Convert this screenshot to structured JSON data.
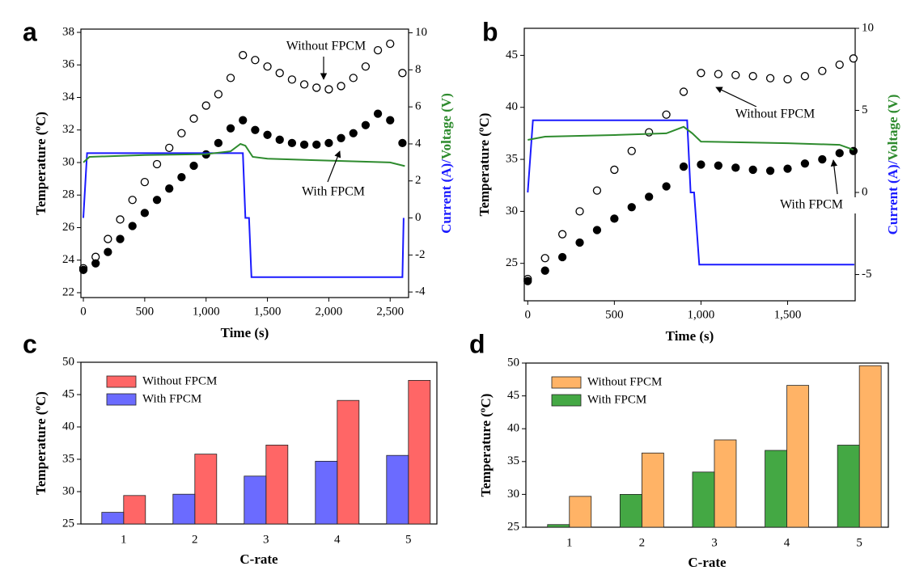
{
  "chart_data": [
    {
      "type": "line",
      "panel_label": "a",
      "xlabel": "Time (s)",
      "ylabel": "Temperature (ºC)",
      "xlim": [
        -20,
        2650
      ],
      "xticks": [
        0,
        500,
        {
          "value": 1000,
          "label": "1,000"
        },
        {
          "value": 1500,
          "label": "1,500"
        },
        {
          "value": 2000,
          "label": "2,000"
        },
        {
          "value": 2500,
          "label": "2,500"
        }
      ],
      "ylim": [
        21.7,
        38.2
      ],
      "yticks": [
        22,
        24,
        26,
        28,
        30,
        32,
        34,
        36,
        38
      ],
      "y2lim": [
        -4.3,
        10.2
      ],
      "y2ticks": [
        -4,
        -2,
        0,
        2,
        4,
        6,
        8,
        10
      ],
      "series": [
        {
          "name": "Without FPCM",
          "color": "#000000",
          "marker": "open",
          "x": [
            0,
            100,
            200,
            300,
            400,
            500,
            600,
            700,
            800,
            900,
            1000,
            1100,
            1200,
            1300,
            1400,
            1500,
            1600,
            1700,
            1800,
            1900,
            2000,
            2100,
            2200,
            2300,
            2400,
            2500,
            2600
          ],
          "values": [
            23.5,
            24.2,
            25.3,
            26.5,
            27.7,
            28.8,
            29.9,
            30.9,
            31.8,
            32.7,
            33.5,
            34.2,
            35.2,
            36.6,
            36.3,
            35.9,
            35.5,
            35.1,
            34.8,
            34.6,
            34.5,
            34.7,
            35.2,
            35.9,
            36.9,
            37.3,
            35.5
          ]
        },
        {
          "name": "With FPCM",
          "color": "#000000",
          "marker": "filled",
          "x": [
            0,
            100,
            200,
            300,
            400,
            500,
            600,
            700,
            800,
            900,
            1000,
            1100,
            1200,
            1300,
            1400,
            1500,
            1600,
            1700,
            1800,
            1900,
            2000,
            2100,
            2200,
            2300,
            2400,
            2500,
            2600
          ],
          "values": [
            23.4,
            23.8,
            24.5,
            25.3,
            26.1,
            26.9,
            27.7,
            28.4,
            29.1,
            29.8,
            30.5,
            31.2,
            32.1,
            32.6,
            32.0,
            31.7,
            31.4,
            31.2,
            31.1,
            31.1,
            31.2,
            31.5,
            31.8,
            32.3,
            33.0,
            32.6,
            31.2
          ]
        },
        {
          "name": "Current (A)/",
          "color": "#1a1aff",
          "axis": "y2",
          "x": [
            0,
            30,
            1300,
            1320,
            1350,
            1370,
            2600,
            2610
          ],
          "values": [
            0,
            3.5,
            3.5,
            0,
            0,
            -3.2,
            -3.2,
            0
          ]
        },
        {
          "name": "Voltage (V)",
          "color": "#2e8b2e",
          "axis": "y2",
          "x": [
            0,
            50,
            500,
            1000,
            1200,
            1280,
            1320,
            1380,
            1500,
            2000,
            2500,
            2620
          ],
          "values": [
            3.0,
            3.3,
            3.4,
            3.45,
            3.6,
            4.0,
            3.9,
            3.3,
            3.2,
            3.1,
            3.0,
            2.8
          ]
        }
      ],
      "annotations": [
        "Without FPCM",
        "With FPCM"
      ]
    },
    {
      "type": "line",
      "panel_label": "b",
      "xlabel": "Time (s)",
      "ylabel": "Temperature (ºC)",
      "xlim": [
        -20,
        1890
      ],
      "xticks": [
        0,
        500,
        {
          "value": 1000,
          "label": "1,000"
        },
        {
          "value": 1500,
          "label": "1,500"
        }
      ],
      "ylim": [
        21.4,
        47.6
      ],
      "yticks": [
        25,
        30,
        35,
        40,
        45
      ],
      "y2lim": [
        -6.6,
        10
      ],
      "y2ticks": [
        -5,
        0,
        5,
        10
      ],
      "series": [
        {
          "name": "Without FPCM",
          "color": "#000000",
          "marker": "open",
          "x": [
            0,
            100,
            200,
            300,
            400,
            500,
            600,
            700,
            800,
            900,
            1000,
            1100,
            1200,
            1300,
            1400,
            1500,
            1600,
            1700,
            1800,
            1880
          ],
          "values": [
            23.5,
            25.5,
            27.8,
            30.0,
            32.0,
            34.0,
            35.8,
            37.6,
            39.3,
            41.5,
            43.3,
            43.2,
            43.1,
            43.0,
            42.8,
            42.7,
            43.0,
            43.5,
            44.1,
            44.7
          ]
        },
        {
          "name": "With FPCM",
          "color": "#000000",
          "marker": "filled",
          "x": [
            0,
            100,
            200,
            300,
            400,
            500,
            600,
            700,
            800,
            900,
            1000,
            1100,
            1200,
            1300,
            1400,
            1500,
            1600,
            1700,
            1800,
            1880
          ],
          "values": [
            23.3,
            24.3,
            25.6,
            27.0,
            28.2,
            29.3,
            30.4,
            31.4,
            32.4,
            34.3,
            34.5,
            34.4,
            34.2,
            34.0,
            33.9,
            34.1,
            34.6,
            35.0,
            35.6,
            35.8
          ]
        },
        {
          "name": "Current (A)/",
          "color": "#1a1aff",
          "axis": "y2",
          "x": [
            0,
            30,
            920,
            940,
            960,
            990,
            1885
          ],
          "values": [
            0,
            4.4,
            4.4,
            0,
            0,
            -4.4,
            -4.4
          ]
        },
        {
          "name": "Voltage (V)",
          "color": "#2e8b2e",
          "axis": "y2",
          "x": [
            0,
            50,
            100,
            500,
            800,
            900,
            950,
            1000,
            1500,
            1800,
            1880
          ],
          "values": [
            3.2,
            3.3,
            3.4,
            3.5,
            3.6,
            4.0,
            3.6,
            3.1,
            3.0,
            2.9,
            2.6
          ]
        }
      ],
      "annotations": [
        "Without FPCM",
        "With FPCM"
      ]
    },
    {
      "type": "bar",
      "panel_label": "c",
      "xlabel": "C-rate",
      "ylabel": "Temperature (ºC)",
      "categories": [
        "1",
        "2",
        "3",
        "4",
        "5"
      ],
      "ylim": [
        25,
        50
      ],
      "yticks": [
        25,
        30,
        35,
        40,
        45,
        50
      ],
      "legend": "upper left",
      "series": [
        {
          "name": "Without FPCM",
          "color": "#ff6666",
          "values": [
            29.4,
            35.8,
            37.2,
            44.1,
            47.2
          ]
        },
        {
          "name": "With FPCM",
          "color": "#6b6bff",
          "values": [
            26.8,
            29.6,
            32.4,
            34.7,
            35.6
          ]
        }
      ]
    },
    {
      "type": "bar",
      "panel_label": "d",
      "xlabel": "C-rate",
      "ylabel": "Temperature (ºC)",
      "categories": [
        "1",
        "2",
        "3",
        "4",
        "5"
      ],
      "ylim": [
        25,
        50
      ],
      "yticks": [
        25,
        30,
        35,
        40,
        45,
        50
      ],
      "legend": "upper left",
      "series": [
        {
          "name": "Without FPCM",
          "color": "#ffb366",
          "values": [
            29.7,
            36.3,
            38.3,
            46.6,
            49.6
          ]
        },
        {
          "name": "With FPCM",
          "color": "#44a844",
          "values": [
            25.4,
            30.0,
            33.4,
            36.7,
            37.5
          ]
        }
      ]
    }
  ]
}
